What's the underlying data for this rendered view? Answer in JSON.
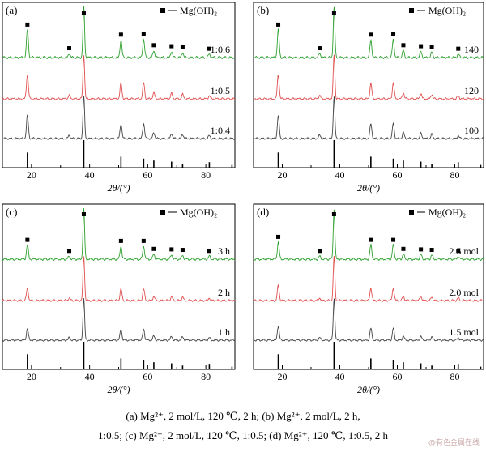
{
  "figure": {
    "caption_line1": "(a) Mg²⁺, 2 mol/L, 120 ℃, 2 h; (b) Mg²⁺, 2 mol/L, 2 h,",
    "caption_line2": "1:0.5; (c) Mg²⁺, 2 mol/L, 120 ℃, 1:0.5; (d) Mg²⁺, 120 ℃, 1:0.5, 2 h",
    "watermark": "@有色金属在线",
    "legend_label": "Mg(OH)₂",
    "xlabel": "2θ/(°)"
  },
  "colors": {
    "green": "#2ca02c",
    "red": "#e05050",
    "gray": "#444444",
    "ref": "#000000",
    "marker": "#000000"
  },
  "chart_data": [
    {
      "type": "line",
      "panel_label": "(a)",
      "xlabel": "2θ/(°)",
      "xlim": [
        10,
        90
      ],
      "xticks": [
        20,
        40,
        60,
        80
      ],
      "legend": "■ — Mg(OH)₂",
      "series": [
        {
          "name": "1:0.6",
          "color": "#2ca02c"
        },
        {
          "name": "1:0.5",
          "color": "#e05050"
        },
        {
          "name": "1:0.4",
          "color": "#444444"
        }
      ],
      "peak_positions": [
        18.6,
        33.0,
        38.0,
        50.8,
        58.6,
        62.1,
        68.2,
        72.0,
        81.2
      ],
      "peak_heights": [
        0.55,
        0.08,
        1.0,
        0.35,
        0.36,
        0.14,
        0.12,
        0.1,
        0.07
      ],
      "marked_peaks": [
        18.6,
        33.0,
        38.0,
        50.8,
        58.6,
        62.1,
        68.2,
        72.0,
        81.2
      ],
      "reference_lines": [
        {
          "x": 18.6,
          "h": 0.55
        },
        {
          "x": 38.0,
          "h": 1.0
        },
        {
          "x": 50.8,
          "h": 0.4
        },
        {
          "x": 58.6,
          "h": 0.33
        },
        {
          "x": 62.1,
          "h": 0.26
        },
        {
          "x": 68.2,
          "h": 0.22
        },
        {
          "x": 72.0,
          "h": 0.14
        },
        {
          "x": 81.2,
          "h": 0.2
        },
        {
          "x": 89.0,
          "h": 0.1
        }
      ]
    },
    {
      "type": "line",
      "panel_label": "(b)",
      "xlabel": "2θ/(°)",
      "xlim": [
        10,
        90
      ],
      "xticks": [
        20,
        40,
        60,
        80
      ],
      "legend": "■ — Mg(OH)₂",
      "series": [
        {
          "name": "140",
          "color": "#2ca02c"
        },
        {
          "name": "120",
          "color": "#e05050"
        },
        {
          "name": "100",
          "color": "#444444"
        }
      ],
      "peak_positions": [
        18.6,
        33.0,
        38.0,
        50.8,
        58.6,
        62.1,
        68.2,
        72.0,
        81.2
      ],
      "peak_heights": [
        0.55,
        0.08,
        1.0,
        0.35,
        0.36,
        0.14,
        0.12,
        0.1,
        0.07
      ],
      "marked_peaks": [
        18.6,
        33.0,
        38.0,
        50.8,
        58.6,
        62.1,
        68.2,
        72.0,
        81.2
      ],
      "reference_lines": [
        {
          "x": 18.6,
          "h": 0.55
        },
        {
          "x": 38.0,
          "h": 1.0
        },
        {
          "x": 50.8,
          "h": 0.4
        },
        {
          "x": 58.6,
          "h": 0.33
        },
        {
          "x": 62.1,
          "h": 0.26
        },
        {
          "x": 68.2,
          "h": 0.22
        },
        {
          "x": 72.0,
          "h": 0.14
        },
        {
          "x": 81.2,
          "h": 0.2
        },
        {
          "x": 89.0,
          "h": 0.1
        }
      ]
    },
    {
      "type": "line",
      "panel_label": "(c)",
      "xlabel": "2θ/(°)",
      "xlim": [
        10,
        90
      ],
      "xticks": [
        20,
        40,
        60,
        80
      ],
      "legend": "■ — Mg(OH)₂",
      "series": [
        {
          "name": "3 h",
          "color": "#2ca02c"
        },
        {
          "name": "2 h",
          "color": "#e05050"
        },
        {
          "name": "1 h",
          "color": "#444444"
        }
      ],
      "peak_positions": [
        18.6,
        33.0,
        38.0,
        50.8,
        58.6,
        62.1,
        68.2,
        72.0,
        81.2
      ],
      "peak_heights": [
        0.28,
        0.06,
        1.0,
        0.26,
        0.26,
        0.1,
        0.09,
        0.08,
        0.06
      ],
      "marked_peaks": [
        18.6,
        33.0,
        38.0,
        50.8,
        58.6,
        62.1,
        68.2,
        72.0,
        81.2
      ],
      "reference_lines": [
        {
          "x": 18.6,
          "h": 0.55
        },
        {
          "x": 38.0,
          "h": 1.0
        },
        {
          "x": 50.8,
          "h": 0.4
        },
        {
          "x": 58.6,
          "h": 0.33
        },
        {
          "x": 62.1,
          "h": 0.26
        },
        {
          "x": 68.2,
          "h": 0.22
        },
        {
          "x": 72.0,
          "h": 0.14
        },
        {
          "x": 81.2,
          "h": 0.2
        },
        {
          "x": 89.0,
          "h": 0.1
        }
      ]
    },
    {
      "type": "line",
      "panel_label": "(d)",
      "xlabel": "2θ/(°)",
      "xlim": [
        10,
        90
      ],
      "xticks": [
        20,
        40,
        60,
        80
      ],
      "legend": "■ — Mg(OH)₂",
      "series": [
        {
          "name": "2.5 mol",
          "color": "#2ca02c"
        },
        {
          "name": "2.0 mol",
          "color": "#e05050"
        },
        {
          "name": "1.5 mol",
          "color": "#444444"
        }
      ],
      "peak_positions": [
        18.6,
        33.0,
        38.0,
        50.8,
        58.6,
        62.1,
        68.2,
        72.0,
        81.2
      ],
      "peak_heights": [
        0.34,
        0.06,
        1.0,
        0.28,
        0.28,
        0.1,
        0.09,
        0.08,
        0.06
      ],
      "marked_peaks": [
        18.6,
        33.0,
        38.0,
        50.8,
        58.6,
        62.1,
        68.2,
        72.0,
        81.2
      ],
      "reference_lines": [
        {
          "x": 18.6,
          "h": 0.55
        },
        {
          "x": 38.0,
          "h": 1.0
        },
        {
          "x": 50.8,
          "h": 0.4
        },
        {
          "x": 58.6,
          "h": 0.33
        },
        {
          "x": 62.1,
          "h": 0.26
        },
        {
          "x": 68.2,
          "h": 0.22
        },
        {
          "x": 72.0,
          "h": 0.14
        },
        {
          "x": 81.2,
          "h": 0.2
        },
        {
          "x": 89.0,
          "h": 0.1
        }
      ]
    }
  ]
}
